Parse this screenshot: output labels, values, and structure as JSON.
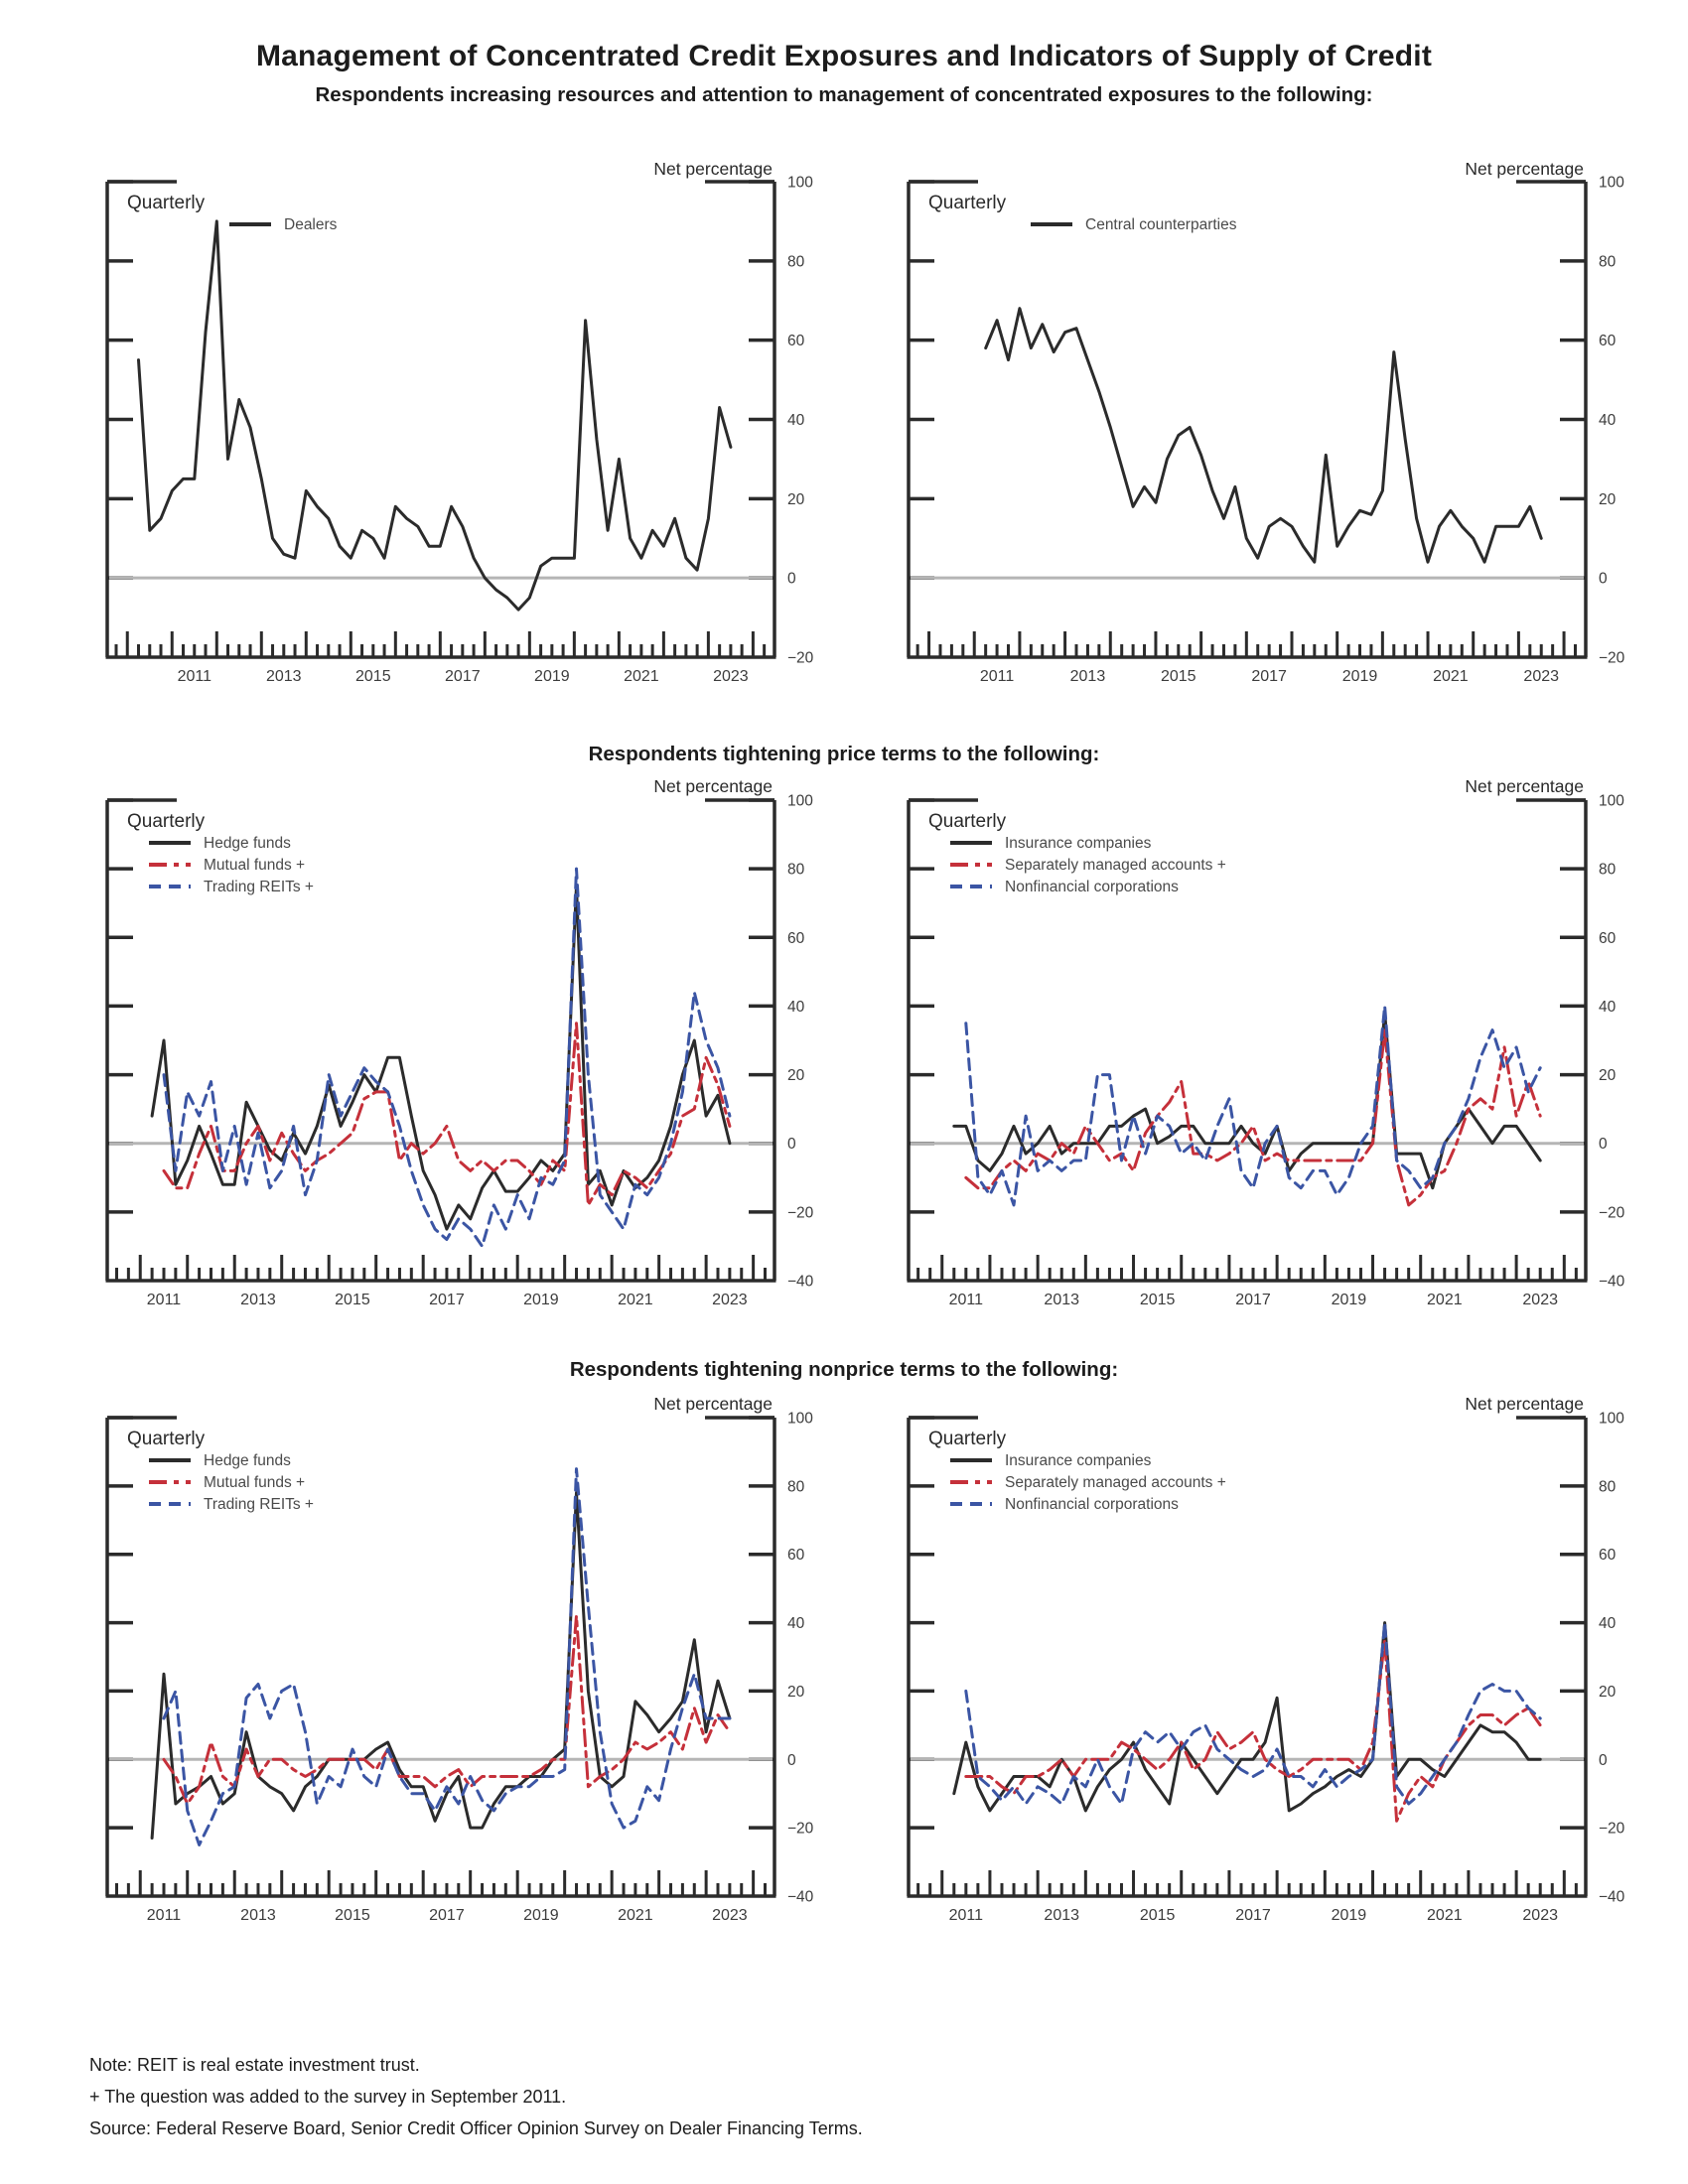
{
  "page_title": "Management of Concentrated Credit Exposures and Indicators of Supply of Credit",
  "sections": [
    {
      "subtitle": "Respondents increasing resources and attention to management of concentrated exposures to the following:"
    },
    {
      "subtitle": "Respondents tightening price terms to the following:"
    },
    {
      "subtitle": "Respondents tightening nonprice terms to the following:"
    }
  ],
  "axis_labels": {
    "y_axis_label": "Net percentage",
    "frequency_label": "Quarterly"
  },
  "colors": {
    "black": "#2b2b2b",
    "red": "#c5303a",
    "blue": "#3b55a4",
    "zero_line": "#b5b5b5",
    "tick_text": "#3c3c3c",
    "legend_text": "#4a4a4a"
  },
  "footnotes": [
    "Note:  REIT is real estate investment trust.",
    "+ The question was added to the survey in September 2011.",
    "Source:  Federal Reserve Board, Senior Credit Officer Opinion Survey on Dealer Financing Terms."
  ],
  "chart_data": [
    {
      "id": "exposures-dealers",
      "type": "line",
      "section": 0,
      "position": 0,
      "corner_label": "Quarterly",
      "ylabel": "Net percentage",
      "ylim": [
        -20,
        100
      ],
      "yticks": [
        100,
        80,
        60,
        40,
        20,
        0,
        -20
      ],
      "xlabel_years": [
        2011,
        2013,
        2015,
        2017,
        2019,
        2021,
        2023
      ],
      "series": [
        {
          "name": "Dealers",
          "color_key": "black",
          "dash": "solid",
          "x_start": 2010.25,
          "x_step": 0.25,
          "values": [
            55,
            12,
            15,
            22,
            25,
            25,
            62,
            90,
            30,
            45,
            38,
            25,
            10,
            6,
            5,
            22,
            18,
            15,
            8,
            5,
            12,
            10,
            5,
            18,
            15,
            13,
            8,
            8,
            18,
            13,
            5,
            0,
            -3,
            -5,
            -8,
            -5,
            3,
            5,
            5,
            5,
            65,
            35,
            12,
            30,
            10,
            5,
            12,
            8,
            15,
            5,
            2,
            15,
            43,
            33
          ]
        }
      ]
    },
    {
      "id": "exposures-central-counterparties",
      "type": "line",
      "section": 0,
      "position": 1,
      "corner_label": "Quarterly",
      "ylabel": "Net percentage",
      "ylim": [
        -20,
        100
      ],
      "yticks": [
        100,
        80,
        60,
        40,
        20,
        0,
        -20
      ],
      "xlabel_years": [
        2011,
        2013,
        2015,
        2017,
        2019,
        2021,
        2023
      ],
      "series": [
        {
          "name": "Central counterparties",
          "color_key": "black",
          "dash": "solid",
          "x_start": 2011.25,
          "x_step": 0.25,
          "values": [
            58,
            65,
            55,
            68,
            58,
            64,
            57,
            62,
            63,
            55,
            47,
            38,
            28,
            18,
            23,
            19,
            30,
            36,
            38,
            31,
            22,
            15,
            23,
            10,
            5,
            13,
            15,
            13,
            8,
            4,
            31,
            8,
            13,
            17,
            16,
            22,
            57,
            35,
            15,
            4,
            13,
            17,
            13,
            10,
            4,
            13,
            13,
            13,
            18,
            10
          ]
        }
      ]
    },
    {
      "id": "price-terms-funds",
      "type": "line",
      "section": 1,
      "position": 0,
      "corner_label": "Quarterly",
      "ylabel": "Net percentage",
      "ylim": [
        -40,
        100
      ],
      "yticks": [
        100,
        80,
        60,
        40,
        20,
        0,
        -20,
        -40
      ],
      "xlabel_years": [
        2011,
        2013,
        2015,
        2017,
        2019,
        2021,
        2023
      ],
      "series": [
        {
          "name": "Hedge funds",
          "color_key": "black",
          "dash": "solid",
          "x_start": 2011.25,
          "x_step": 0.25,
          "values": [
            8,
            30,
            -12,
            -5,
            5,
            -3,
            -12,
            -12,
            12,
            5,
            -2,
            -5,
            3,
            -3,
            5,
            17,
            5,
            12,
            20,
            15,
            25,
            25,
            8,
            -8,
            -15,
            -25,
            -18,
            -22,
            -13,
            -8,
            -14,
            -14,
            -10,
            -5,
            -8,
            -3,
            75,
            -12,
            -8,
            -18,
            -8,
            -13,
            -10,
            -5,
            5,
            20,
            30,
            8,
            14,
            0
          ]
        },
        {
          "name": "Mutual funds +",
          "color_key": "red",
          "dash": "dashdot",
          "x_start": 2011.5,
          "x_step": 0.25,
          "values": [
            -8,
            -13,
            -13,
            -3,
            5,
            -8,
            -8,
            0,
            5,
            -5,
            3,
            -3,
            -8,
            -5,
            -3,
            0,
            3,
            13,
            15,
            15,
            -5,
            0,
            -3,
            0,
            5,
            -5,
            -8,
            -5,
            -8,
            -5,
            -5,
            -8,
            -12,
            -5,
            -8,
            35,
            -18,
            -12,
            -15,
            -8,
            -10,
            -13,
            -8,
            -3,
            8,
            10,
            25,
            17,
            5
          ]
        },
        {
          "name": "Trading REITs +",
          "color_key": "blue",
          "dash": "dashed",
          "x_start": 2011.5,
          "x_step": 0.25,
          "values": [
            20,
            -8,
            15,
            8,
            18,
            -8,
            5,
            -12,
            3,
            -13,
            -8,
            5,
            -15,
            -5,
            20,
            8,
            15,
            22,
            18,
            15,
            5,
            -8,
            -18,
            -25,
            -28,
            -22,
            -25,
            -30,
            -18,
            -25,
            -15,
            -22,
            -10,
            -12,
            -5,
            80,
            20,
            -15,
            -20,
            -25,
            -12,
            -15,
            -10,
            0,
            15,
            44,
            30,
            22,
            8
          ]
        }
      ]
    },
    {
      "id": "price-terms-institutions",
      "type": "line",
      "section": 1,
      "position": 1,
      "corner_label": "Quarterly",
      "ylabel": "Net percentage",
      "ylim": [
        -40,
        100
      ],
      "yticks": [
        100,
        80,
        60,
        40,
        20,
        0,
        -20,
        -40
      ],
      "xlabel_years": [
        2011,
        2013,
        2015,
        2017,
        2019,
        2021,
        2023
      ],
      "series": [
        {
          "name": "Insurance companies",
          "color_key": "black",
          "dash": "solid",
          "x_start": 2011.25,
          "x_step": 0.25,
          "values": [
            5,
            5,
            -5,
            -8,
            -3,
            5,
            -3,
            0,
            5,
            -3,
            0,
            0,
            0,
            5,
            5,
            8,
            10,
            0,
            2,
            5,
            5,
            0,
            0,
            0,
            5,
            0,
            -3,
            5,
            -8,
            -3,
            0,
            0,
            0,
            0,
            0,
            0,
            38,
            -3,
            -3,
            -3,
            -13,
            0,
            5,
            10,
            5,
            0,
            5,
            5,
            0,
            -5
          ]
        },
        {
          "name": "Separately managed accounts +",
          "color_key": "red",
          "dash": "dashdot",
          "x_start": 2011.5,
          "x_step": 0.25,
          "values": [
            -10,
            -13,
            -13,
            -8,
            -5,
            -8,
            -3,
            -5,
            0,
            -3,
            5,
            0,
            -5,
            -3,
            -8,
            3,
            8,
            12,
            18,
            -3,
            -3,
            -5,
            -3,
            0,
            5,
            -5,
            -3,
            -5,
            -5,
            -5,
            -5,
            -5,
            -5,
            -5,
            0,
            33,
            -5,
            -18,
            -15,
            -10,
            -8,
            0,
            10,
            13,
            10,
            28,
            8,
            18,
            8
          ]
        },
        {
          "name": "Nonfinancial corporations",
          "color_key": "blue",
          "dash": "dashed",
          "x_start": 2011.5,
          "x_step": 0.25,
          "values": [
            35,
            -10,
            -15,
            -8,
            -18,
            8,
            -8,
            -5,
            -8,
            -5,
            -5,
            20,
            20,
            -5,
            8,
            -3,
            8,
            5,
            -3,
            0,
            -5,
            5,
            13,
            -8,
            -13,
            0,
            5,
            -10,
            -13,
            -8,
            -8,
            -15,
            -10,
            0,
            5,
            40,
            -5,
            -8,
            -13,
            -10,
            0,
            5,
            13,
            25,
            33,
            22,
            28,
            15,
            22
          ]
        }
      ]
    },
    {
      "id": "nonprice-terms-funds",
      "type": "line",
      "section": 2,
      "position": 0,
      "corner_label": "Quarterly",
      "ylabel": "Net percentage",
      "ylim": [
        -40,
        100
      ],
      "yticks": [
        100,
        80,
        60,
        40,
        20,
        0,
        -20,
        -40
      ],
      "xlabel_years": [
        2011,
        2013,
        2015,
        2017,
        2019,
        2021,
        2023
      ],
      "series": [
        {
          "name": "Hedge funds",
          "color_key": "black",
          "dash": "solid",
          "x_start": 2011.25,
          "x_step": 0.25,
          "values": [
            -23,
            25,
            -13,
            -10,
            -8,
            -5,
            -13,
            -10,
            8,
            -5,
            -8,
            -10,
            -15,
            -8,
            -5,
            0,
            0,
            0,
            0,
            3,
            5,
            -3,
            -8,
            -8,
            -18,
            -10,
            -5,
            -20,
            -20,
            -13,
            -8,
            -8,
            -5,
            -5,
            0,
            3,
            78,
            20,
            -5,
            -8,
            -5,
            17,
            13,
            8,
            12,
            17,
            35,
            8,
            23,
            12
          ]
        },
        {
          "name": "Mutual funds +",
          "color_key": "red",
          "dash": "dashdot",
          "x_start": 2011.5,
          "x_step": 0.25,
          "values": [
            0,
            -5,
            -13,
            -8,
            5,
            -5,
            -8,
            3,
            -5,
            0,
            0,
            -3,
            -5,
            -3,
            0,
            0,
            0,
            0,
            -3,
            3,
            -5,
            -5,
            -5,
            -8,
            -5,
            -3,
            -8,
            -5,
            -5,
            -5,
            -5,
            -5,
            -3,
            0,
            0,
            42,
            -8,
            -5,
            -3,
            0,
            5,
            3,
            5,
            8,
            3,
            15,
            5,
            13,
            8
          ]
        },
        {
          "name": "Trading REITs +",
          "color_key": "blue",
          "dash": "dashed",
          "x_start": 2011.5,
          "x_step": 0.25,
          "values": [
            12,
            20,
            -15,
            -25,
            -18,
            -10,
            -8,
            18,
            22,
            12,
            20,
            22,
            8,
            -13,
            -5,
            -8,
            3,
            -5,
            -8,
            3,
            -5,
            -10,
            -10,
            -15,
            -8,
            -13,
            -5,
            -12,
            -15,
            -10,
            -8,
            -8,
            -5,
            -5,
            -3,
            85,
            45,
            8,
            -13,
            -20,
            -18,
            -8,
            -12,
            3,
            15,
            25,
            12,
            12,
            12
          ]
        }
      ]
    },
    {
      "id": "nonprice-terms-institutions",
      "type": "line",
      "section": 2,
      "position": 1,
      "corner_label": "Quarterly",
      "ylabel": "Net percentage",
      "ylim": [
        -40,
        100
      ],
      "yticks": [
        100,
        80,
        60,
        40,
        20,
        0,
        -20,
        -40
      ],
      "xlabel_years": [
        2011,
        2013,
        2015,
        2017,
        2019,
        2021,
        2023
      ],
      "series": [
        {
          "name": "Insurance companies",
          "color_key": "black",
          "dash": "solid",
          "x_start": 2011.25,
          "x_step": 0.25,
          "values": [
            -10,
            5,
            -8,
            -15,
            -10,
            -5,
            -5,
            -5,
            -8,
            0,
            -5,
            -15,
            -8,
            -3,
            0,
            5,
            -3,
            -8,
            -13,
            5,
            0,
            -5,
            -10,
            -5,
            0,
            0,
            5,
            18,
            -15,
            -13,
            -10,
            -8,
            -5,
            -3,
            -5,
            0,
            40,
            -5,
            0,
            0,
            -3,
            -5,
            0,
            5,
            10,
            8,
            8,
            5,
            0,
            0
          ]
        },
        {
          "name": "Separately managed accounts +",
          "color_key": "red",
          "dash": "dashdot",
          "x_start": 2011.5,
          "x_step": 0.25,
          "values": [
            -5,
            -5,
            -5,
            -8,
            -10,
            -5,
            -5,
            -3,
            0,
            -5,
            0,
            0,
            0,
            5,
            3,
            0,
            -3,
            0,
            5,
            -3,
            0,
            8,
            3,
            5,
            8,
            0,
            -3,
            -5,
            -3,
            0,
            0,
            0,
            0,
            -3,
            5,
            35,
            -18,
            -10,
            -5,
            -8,
            0,
            5,
            10,
            13,
            13,
            10,
            13,
            15,
            10
          ]
        },
        {
          "name": "Nonfinancial corporations",
          "color_key": "blue",
          "dash": "dashed",
          "x_start": 2011.5,
          "x_step": 0.25,
          "values": [
            20,
            -5,
            -8,
            -12,
            -8,
            -13,
            -8,
            -10,
            -13,
            -5,
            -8,
            0,
            -8,
            -13,
            3,
            8,
            5,
            8,
            3,
            8,
            10,
            3,
            0,
            -3,
            -5,
            -3,
            3,
            -5,
            -5,
            -8,
            -3,
            -8,
            -5,
            -3,
            0,
            40,
            -8,
            -13,
            -10,
            -5,
            0,
            5,
            13,
            20,
            22,
            20,
            20,
            15,
            12
          ]
        }
      ]
    }
  ]
}
